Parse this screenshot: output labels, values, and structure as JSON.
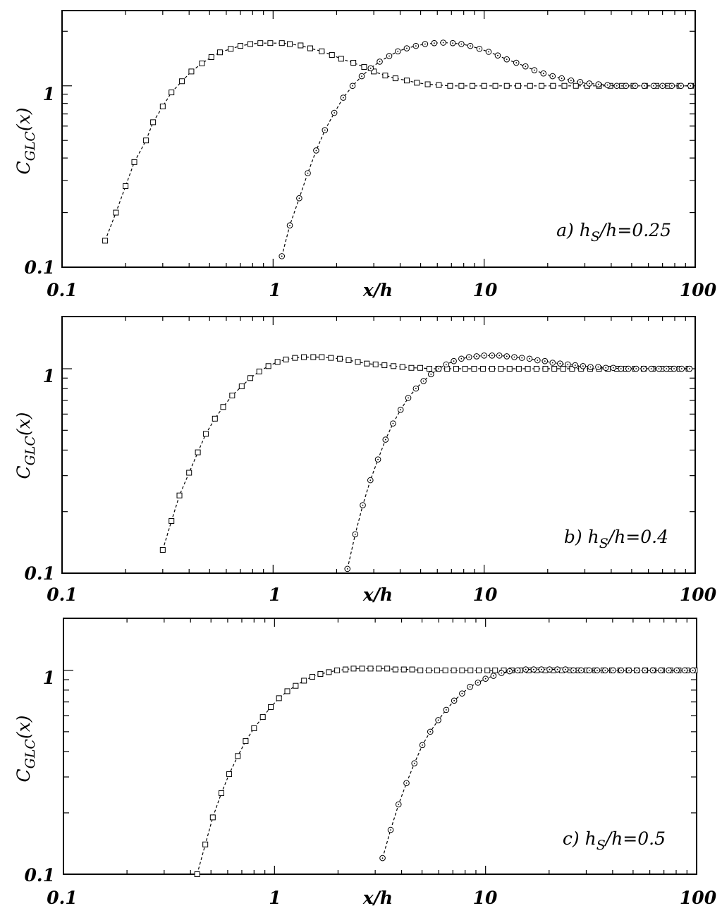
{
  "chart_data": [
    {
      "type": "scatter",
      "annotation_prefix": "a) h",
      "annotation_sub": "S",
      "annotation_suffix": "/h=0.25",
      "ylabel_main": "C",
      "ylabel_sub": "GLC",
      "ylabel_suffix": "(x)",
      "xlabel": "x/h",
      "x_scale": "log",
      "y_scale": "log",
      "xlim": [
        0.1,
        100
      ],
      "ylim": [
        0.1,
        2.6
      ],
      "x_tick_labels": [
        "0.1",
        "1",
        "x/h",
        "10",
        "100"
      ],
      "y_tick_labels": [
        "1",
        "0.1"
      ],
      "series": [
        {
          "marker": "square",
          "x": [
            0.16,
            0.18,
            0.2,
            0.22,
            0.25,
            0.27,
            0.3,
            0.33,
            0.37,
            0.41,
            0.46,
            0.51,
            0.56,
            0.63,
            0.7,
            0.78,
            0.87,
            0.97,
            1.1,
            1.2,
            1.35,
            1.5,
            1.7,
            1.9,
            2.1,
            2.4,
            2.7,
            3.0,
            3.4,
            3.8,
            4.3,
            4.8,
            5.4,
            6.1,
            6.9,
            7.8,
            8.8,
            10,
            11.3,
            12.8,
            14.5,
            16.5,
            18.7,
            21.2,
            24,
            27.2,
            30.8,
            35,
            39.6,
            45,
            51,
            57.8,
            65.5,
            74.3,
            84.2,
            95.5
          ],
          "y": [
            0.14,
            0.2,
            0.28,
            0.38,
            0.5,
            0.63,
            0.77,
            0.92,
            1.06,
            1.2,
            1.33,
            1.44,
            1.53,
            1.6,
            1.66,
            1.7,
            1.72,
            1.72,
            1.72,
            1.7,
            1.67,
            1.61,
            1.55,
            1.48,
            1.41,
            1.34,
            1.27,
            1.2,
            1.14,
            1.1,
            1.07,
            1.04,
            1.02,
            1.01,
            1.0,
            1.0,
            1.0,
            1.0,
            1.0,
            1.0,
            1.0,
            1.0,
            1.0,
            1.0,
            1.0,
            1.0,
            1.0,
            1.0,
            1.0,
            1.0,
            1.0,
            1.0,
            1.0,
            1.0,
            1.0,
            1.0
          ]
        },
        {
          "marker": "circle",
          "x": [
            1.1,
            1.2,
            1.33,
            1.46,
            1.6,
            1.76,
            1.95,
            2.15,
            2.38,
            2.63,
            2.9,
            3.2,
            3.55,
            3.9,
            4.3,
            4.75,
            5.25,
            5.8,
            6.4,
            7.1,
            7.8,
            8.6,
            9.5,
            10.5,
            11.6,
            12.8,
            14.2,
            15.7,
            17.3,
            19.1,
            21.1,
            23.3,
            25.8,
            28.5,
            31.5,
            34.8,
            38.4,
            42.5,
            47,
            52,
            57.4,
            63.5,
            70,
            77.5,
            85.6,
            95
          ],
          "y": [
            0.115,
            0.17,
            0.24,
            0.33,
            0.44,
            0.57,
            0.71,
            0.86,
            1.0,
            1.13,
            1.25,
            1.36,
            1.46,
            1.55,
            1.61,
            1.66,
            1.7,
            1.72,
            1.73,
            1.72,
            1.7,
            1.66,
            1.6,
            1.54,
            1.47,
            1.4,
            1.34,
            1.28,
            1.22,
            1.17,
            1.13,
            1.1,
            1.07,
            1.05,
            1.03,
            1.02,
            1.01,
            1.0,
            1.0,
            1.0,
            1.0,
            1.0,
            1.0,
            1.0,
            1.0,
            1.0
          ]
        }
      ]
    },
    {
      "type": "scatter",
      "annotation_prefix": "b) h",
      "annotation_sub": "S",
      "annotation_suffix": "/h=0.4",
      "ylabel_main": "C",
      "ylabel_sub": "GLC",
      "ylabel_suffix": "(x)",
      "xlabel": "x/h",
      "x_scale": "log",
      "y_scale": "log",
      "xlim": [
        0.1,
        100
      ],
      "ylim": [
        0.1,
        1.8
      ],
      "x_tick_labels": [
        "0.1",
        "1",
        "x/h",
        "10",
        "100"
      ],
      "y_tick_labels": [
        "1",
        "0.1"
      ],
      "series": [
        {
          "marker": "square",
          "x": [
            0.3,
            0.33,
            0.36,
            0.4,
            0.44,
            0.48,
            0.53,
            0.58,
            0.64,
            0.71,
            0.78,
            0.86,
            0.95,
            1.05,
            1.15,
            1.27,
            1.4,
            1.55,
            1.7,
            1.88,
            2.07,
            2.28,
            2.52,
            2.78,
            3.06,
            3.37,
            3.72,
            4.1,
            4.52,
            4.98,
            5.5,
            6.06,
            6.68,
            7.37,
            8.12,
            8.96,
            9.88,
            10.9,
            12,
            13.2,
            14.6,
            16.1,
            17.7,
            19.5,
            21.5,
            23.7,
            26.1,
            28.8,
            31.8,
            35,
            38.6,
            42.6,
            47,
            51.8,
            57,
            62.9,
            69.3,
            76.4,
            84.3,
            93
          ],
          "y": [
            0.13,
            0.18,
            0.24,
            0.31,
            0.39,
            0.48,
            0.57,
            0.65,
            0.74,
            0.82,
            0.9,
            0.97,
            1.03,
            1.08,
            1.11,
            1.13,
            1.14,
            1.14,
            1.14,
            1.13,
            1.12,
            1.1,
            1.08,
            1.06,
            1.05,
            1.04,
            1.03,
            1.02,
            1.01,
            1.01,
            1.0,
            1.0,
            1.0,
            1.0,
            1.0,
            1.0,
            1.0,
            1.0,
            1.0,
            1.0,
            1.0,
            1.0,
            1.0,
            1.0,
            1.0,
            1.0,
            1.0,
            1.0,
            1.0,
            1.0,
            1.0,
            1.0,
            1.0,
            1.0,
            1.0,
            1.0,
            1.0,
            1.0,
            1.0,
            1.0
          ]
        },
        {
          "marker": "circle",
          "x": [
            2.25,
            2.45,
            2.66,
            2.89,
            3.14,
            3.41,
            3.7,
            4.02,
            4.37,
            4.75,
            5.16,
            5.6,
            6.09,
            6.61,
            7.18,
            7.8,
            8.48,
            9.21,
            10,
            10.9,
            11.8,
            12.8,
            13.9,
            15.1,
            16.4,
            17.9,
            19.4,
            21.1,
            22.9,
            24.9,
            27,
            29.4,
            31.9,
            34.7,
            37.7,
            40.9,
            44.5,
            48.3,
            52.5,
            57,
            61.9,
            67.3,
            73.1,
            79.4,
            86.3,
            94
          ],
          "y": [
            0.105,
            0.155,
            0.215,
            0.285,
            0.36,
            0.45,
            0.54,
            0.63,
            0.72,
            0.8,
            0.87,
            0.94,
            1.0,
            1.05,
            1.09,
            1.12,
            1.14,
            1.15,
            1.16,
            1.16,
            1.16,
            1.15,
            1.14,
            1.13,
            1.12,
            1.1,
            1.09,
            1.07,
            1.06,
            1.05,
            1.04,
            1.03,
            1.02,
            1.02,
            1.01,
            1.01,
            1.0,
            1.0,
            1.0,
            1.0,
            1.0,
            1.0,
            1.0,
            1.0,
            1.0,
            1.0
          ]
        }
      ]
    },
    {
      "type": "scatter",
      "annotation_prefix": "c) h",
      "annotation_sub": "S",
      "annotation_suffix": "/h=0.5",
      "ylabel_main": "C",
      "ylabel_sub": "GLC",
      "ylabel_suffix": "(x)",
      "xlabel": "x/h",
      "x_scale": "log",
      "y_scale": "log",
      "xlim": [
        0.1,
        100
      ],
      "ylim": [
        0.1,
        1.8
      ],
      "x_tick_labels": [
        "0.1",
        "1",
        "x/h",
        "10",
        "100"
      ],
      "y_tick_labels": [
        "1",
        "0.1"
      ],
      "series": [
        {
          "marker": "square",
          "x": [
            0.43,
            0.47,
            0.51,
            0.56,
            0.61,
            0.67,
            0.73,
            0.8,
            0.88,
            0.96,
            1.05,
            1.15,
            1.26,
            1.38,
            1.51,
            1.65,
            1.81,
            1.98,
            2.17,
            2.37,
            2.6,
            2.85,
            3.12,
            3.42,
            3.74,
            4.1,
            4.49,
            4.91,
            5.38,
            5.89,
            6.45,
            7.07,
            7.74,
            8.48,
            9.28,
            10.2,
            11.1,
            12.2,
            13.3,
            14.6,
            16,
            17.5,
            19.2,
            21,
            23,
            25.2,
            27.6,
            30.2,
            33.1,
            36.2,
            39.7,
            43.5,
            47.6,
            52.1,
            57.1,
            62.5,
            68.5,
            75,
            82.1,
            90,
            98
          ],
          "y": [
            0.1,
            0.14,
            0.19,
            0.25,
            0.31,
            0.38,
            0.45,
            0.52,
            0.59,
            0.66,
            0.73,
            0.79,
            0.84,
            0.89,
            0.93,
            0.96,
            0.98,
            1.0,
            1.01,
            1.02,
            1.02,
            1.02,
            1.02,
            1.02,
            1.01,
            1.01,
            1.01,
            1.0,
            1.0,
            1.0,
            1.0,
            1.0,
            1.0,
            1.0,
            1.0,
            1.0,
            1.0,
            1.0,
            1.0,
            1.0,
            1.0,
            1.0,
            1.0,
            1.0,
            1.0,
            1.0,
            1.0,
            1.0,
            1.0,
            1.0,
            1.0,
            1.0,
            1.0,
            1.0,
            1.0,
            1.0,
            1.0,
            1.0,
            1.0,
            1.0,
            1.0
          ]
        },
        {
          "marker": "circle",
          "x": [
            3.25,
            3.55,
            3.87,
            4.22,
            4.6,
            5.02,
            5.47,
            5.97,
            6.51,
            7.1,
            7.74,
            8.44,
            9.2,
            10,
            10.9,
            11.9,
            13,
            14.2,
            15.5,
            16.9,
            18.4,
            20.1,
            21.9,
            23.9,
            26.1,
            28.4,
            31,
            33.8,
            36.9,
            40.2,
            43.9,
            47.8,
            52.1,
            56.9,
            62,
            67.7,
            73.8,
            80.5,
            87.8,
            96
          ],
          "y": [
            0.12,
            0.165,
            0.22,
            0.28,
            0.35,
            0.43,
            0.5,
            0.57,
            0.64,
            0.71,
            0.77,
            0.83,
            0.87,
            0.91,
            0.94,
            0.97,
            0.99,
            1.0,
            1.01,
            1.01,
            1.01,
            1.01,
            1.01,
            1.01,
            1.0,
            1.0,
            1.0,
            1.0,
            1.0,
            1.0,
            1.0,
            1.0,
            1.0,
            1.0,
            1.0,
            1.0,
            1.0,
            1.0,
            1.0,
            1.0
          ]
        }
      ]
    }
  ]
}
